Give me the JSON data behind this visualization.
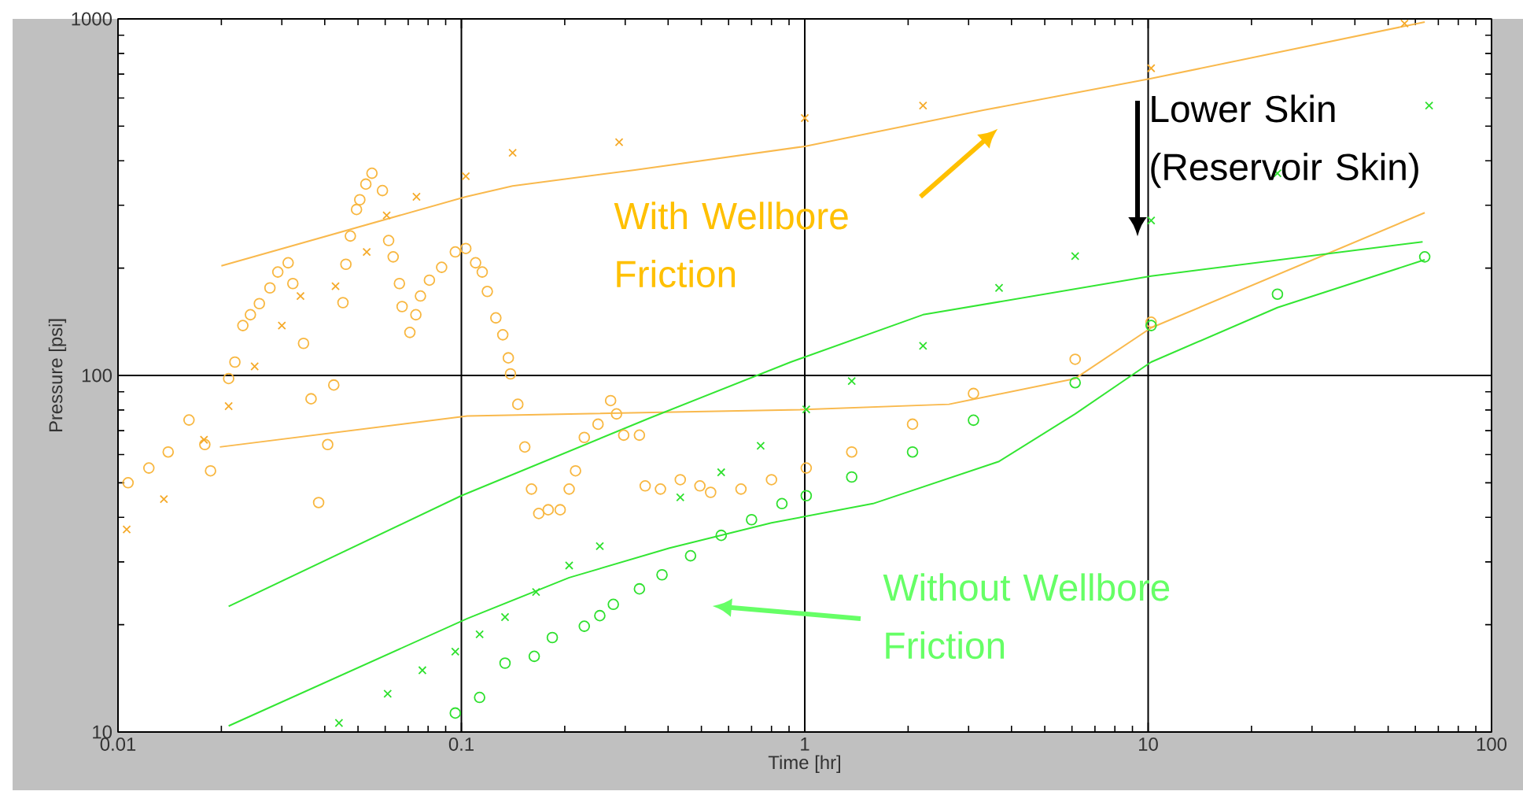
{
  "chart_data": {
    "type": "scatter",
    "xlabel": "Time [hr]",
    "ylabel": "Pressure [psi]",
    "log": "xy",
    "grid": true,
    "xlim": [
      0.01,
      100
    ],
    "ylim": [
      10,
      1000
    ],
    "xticks": [
      0.01,
      0.1,
      1,
      10,
      100
    ],
    "yticks": [
      10,
      100,
      1000
    ],
    "annotations": [
      "With Wellbore Friction",
      "Lower Skin (Reservoir Skin)",
      "Without Wellbore Friction"
    ],
    "series": [
      {
        "marker": "circle",
        "color": "#f8b740",
        "x": [
          0.0107,
          0.0123,
          0.014,
          0.0161,
          0.0179,
          0.0186,
          0.021,
          0.0219,
          0.0231,
          0.0243,
          0.0258,
          0.0277,
          0.0292,
          0.0313,
          0.0323,
          0.0347,
          0.0365,
          0.0384,
          0.0408,
          0.0425,
          0.0452,
          0.0461,
          0.0475,
          0.0495,
          0.0506,
          0.0527,
          0.0549,
          0.0589,
          0.0614,
          0.0633,
          0.066,
          0.0672,
          0.0708,
          0.0737,
          0.076,
          0.0807,
          0.0876,
          0.096,
          0.103,
          0.11,
          0.115,
          0.119,
          0.126,
          0.132,
          0.137,
          0.139,
          0.146,
          0.153,
          0.16,
          0.168,
          0.179,
          0.194,
          0.206,
          0.215,
          0.228,
          0.25,
          0.272,
          0.283,
          0.297,
          0.33,
          0.343,
          0.38,
          0.434,
          0.495,
          0.532,
          0.652,
          0.8,
          1.01,
          1.37,
          2.06,
          3.1,
          6.13,
          10.2
        ],
        "values": [
          50,
          55,
          61,
          75,
          64,
          54,
          98,
          109,
          138,
          148,
          159,
          176,
          195,
          207,
          181,
          123,
          86,
          44,
          64,
          94,
          160,
          205,
          246,
          292,
          311,
          344,
          369,
          330,
          239,
          215,
          181,
          156,
          132,
          148,
          167,
          185,
          201,
          222,
          227,
          207,
          195,
          172,
          145,
          130,
          112,
          101,
          83,
          63,
          48,
          41,
          42,
          42,
          48,
          54,
          67,
          73,
          85,
          78,
          68,
          68,
          49,
          48,
          51,
          49,
          47,
          48,
          51,
          55,
          61,
          73,
          89,
          111,
          141
        ]
      },
      {
        "marker": "cross",
        "color": "#f5aa2a",
        "x": [
          0.0106,
          0.0136,
          0.0178,
          0.021,
          0.025,
          0.03,
          0.034,
          0.043,
          0.053,
          0.0606,
          0.074,
          0.103,
          0.141,
          0.288,
          1.0,
          2.21,
          10.2,
          55.8
        ],
        "values": [
          37,
          45,
          66,
          82,
          106,
          138,
          167,
          178,
          222,
          281,
          317,
          362,
          421,
          451,
          527,
          571,
          727,
          970
        ]
      },
      {
        "type": "line",
        "color": "#f9b94d",
        "x": [
          0.02,
          0.103,
          0.141,
          0.32,
          1.0,
          3.33,
          10.2,
          63.9
        ],
        "values": [
          203,
          317,
          340,
          377,
          439,
          555,
          680,
          980
        ]
      },
      {
        "type": "line",
        "color": "#f9b94d",
        "x": [
          0.0198,
          0.104,
          0.912,
          2.63,
          6.13,
          10.2,
          63.9
        ],
        "values": [
          63,
          77,
          80,
          83,
          98,
          136,
          286
        ]
      },
      {
        "marker": "cross",
        "color": "#2ee02e",
        "x": [
          0.044,
          0.061,
          0.077,
          0.096,
          0.113,
          0.134,
          0.165,
          0.206,
          0.253,
          0.434,
          0.571,
          0.744,
          1.01,
          1.37,
          2.21,
          3.68,
          6.13,
          10.2,
          23.8,
          65.8
        ],
        "values": [
          10.6,
          12.8,
          14.9,
          16.8,
          18.8,
          21,
          24.7,
          29.3,
          33.2,
          45.5,
          53.5,
          63.5,
          80.3,
          96.4,
          121,
          176,
          216,
          272,
          369,
          571
        ]
      },
      {
        "marker": "circle",
        "color": "#2ee02e",
        "x": [
          0.096,
          0.113,
          0.134,
          0.163,
          0.184,
          0.228,
          0.253,
          0.277,
          0.33,
          0.384,
          0.465,
          0.571,
          0.7,
          0.858,
          1.01,
          1.37,
          2.06,
          3.1,
          6.13,
          10.2,
          23.8,
          63.9
        ],
        "values": [
          11.3,
          12.5,
          15.6,
          16.3,
          18.4,
          19.8,
          21.2,
          22.8,
          25.2,
          27.6,
          31.2,
          35.6,
          39.4,
          43.7,
          46,
          51.9,
          61,
          74.9,
          95.4,
          138,
          169,
          215
        ]
      },
      {
        "type": "line",
        "color": "#33e633",
        "x": [
          0.021,
          0.1,
          0.354,
          0.91,
          2.21,
          10.2,
          63
        ],
        "values": [
          22.5,
          46,
          76,
          109,
          148,
          190,
          237
        ]
      },
      {
        "type": "line",
        "color": "#33e633",
        "x": [
          0.021,
          0.104,
          0.206,
          0.404,
          0.8,
          1.58,
          3.68,
          6.13,
          10.2,
          23.8,
          63.9
        ],
        "values": [
          10.4,
          20.8,
          27.1,
          32.8,
          38.6,
          43.7,
          57.4,
          78,
          109,
          155,
          211
        ]
      }
    ]
  }
}
